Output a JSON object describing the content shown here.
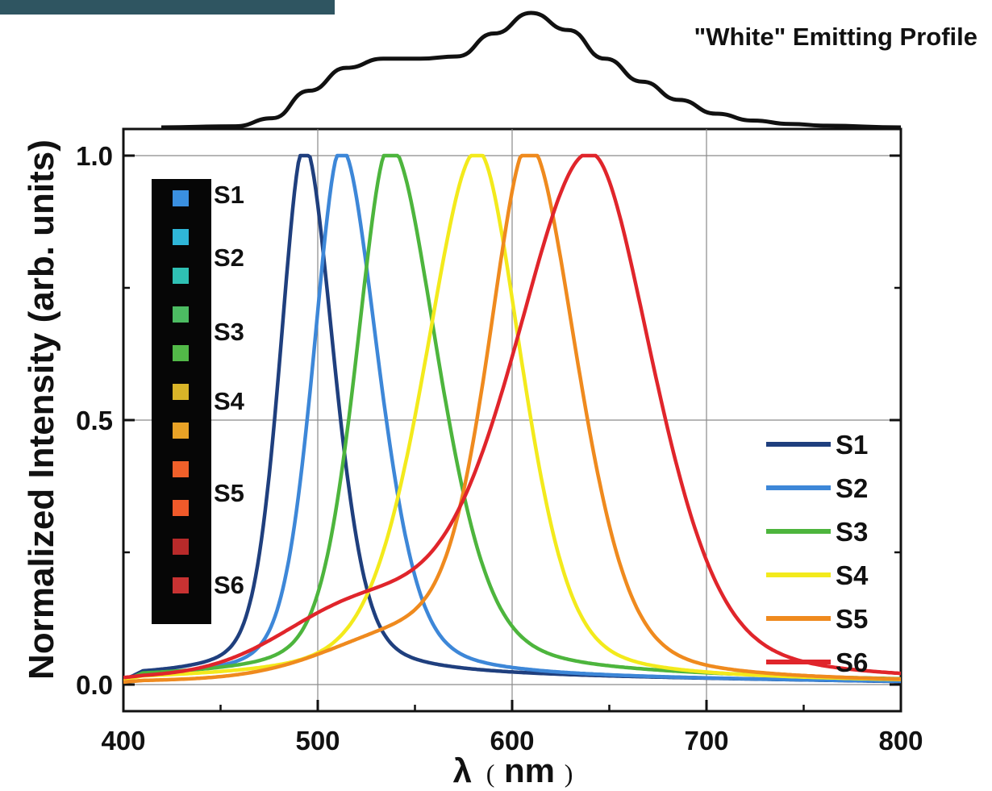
{
  "chart_data": {
    "type": "line",
    "top_panel_title": "\"White\" Emitting Profile",
    "xlabel_symbol": "λ",
    "xlabel_unit_open": "(",
    "xlabel_unit": "nm",
    "xlabel_unit_close": ")",
    "ylabel": "Normalized Intensity (arb. units)",
    "xlim": [
      400,
      800
    ],
    "ylim": [
      -0.05,
      1.05
    ],
    "x_ticks": [
      "400",
      "500",
      "600",
      "700",
      "800"
    ],
    "y_ticks": [
      "0.0",
      "0.5",
      "1.0"
    ],
    "grid": true,
    "legend_position": "lower-right",
    "series": [
      {
        "name": "S1",
        "color": "#1f3f7e",
        "peak": 493,
        "values_at_peaks": 1.0
      },
      {
        "name": "S2",
        "color": "#3d87d8",
        "peak": 512,
        "values_at_peaks": 1.0
      },
      {
        "name": "S3",
        "color": "#4db53d",
        "peak": 537,
        "values_at_peaks": 1.0
      },
      {
        "name": "S4",
        "color": "#f3ea1c",
        "peak": 582,
        "values_at_peaks": 1.0
      },
      {
        "name": "S5",
        "color": "#ef8a1e",
        "peak": 609,
        "values_at_peaks": 1.0
      },
      {
        "name": "S6",
        "color": "#e0252b",
        "peak": 640,
        "values_at_peaks": 1.0
      }
    ],
    "white_profile": {
      "x": [
        400,
        440,
        460,
        480,
        500,
        520,
        540,
        560,
        580,
        600,
        620,
        640,
        660,
        680,
        700,
        720,
        740,
        760,
        800
      ],
      "y": [
        0.0,
        0.01,
        0.08,
        0.32,
        0.52,
        0.6,
        0.6,
        0.62,
        0.82,
        1.0,
        0.85,
        0.6,
        0.4,
        0.24,
        0.12,
        0.06,
        0.03,
        0.015,
        0.0
      ]
    },
    "inset": {
      "labels": [
        "S1",
        "S2",
        "S3",
        "S4",
        "S5",
        "S6"
      ],
      "swatch_colors": [
        "#3a8fe0",
        "#2fb6d8",
        "#2fc0b4",
        "#4cbc62",
        "#52b948",
        "#d9b428",
        "#e9a226",
        "#f0602a",
        "#f05a2a",
        "#b82a2a",
        "#c83232"
      ]
    }
  }
}
